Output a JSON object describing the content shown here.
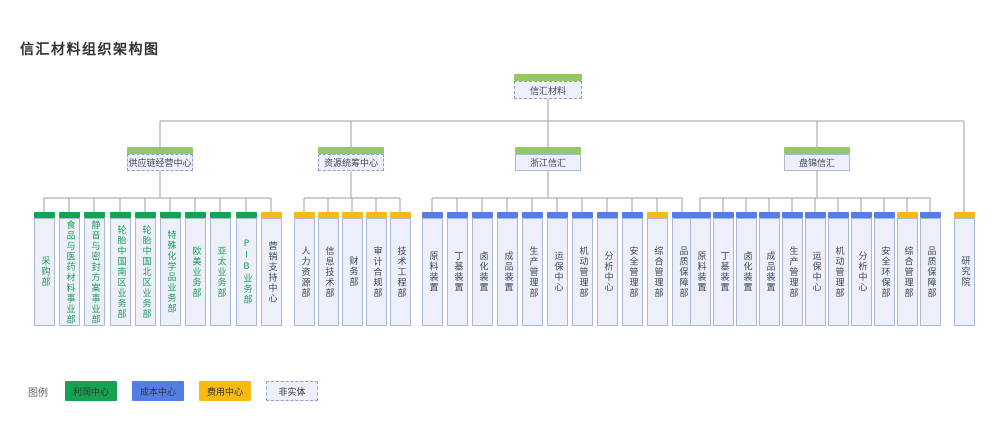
{
  "title": "信汇材料组织架构图",
  "colors": {
    "profit": "#16A351",
    "cost": "#537FE4",
    "expense": "#F8BA12",
    "light_green": "#93C95E",
    "profit_text": "#1e9b55",
    "line": "#9aa0a6",
    "node_fill": "#edf0fb"
  },
  "root": {
    "label": "信汇材料"
  },
  "level2": [
    {
      "label": "供应链经营中心",
      "style": "dashed",
      "children": [
        {
          "label": "采购部",
          "type": "profit"
        },
        {
          "label": "食品与医药材料事业部",
          "type": "profit"
        },
        {
          "label": "静音与密封方案事业部",
          "type": "profit"
        },
        {
          "label": "轮胎中国南区业务部",
          "type": "profit"
        },
        {
          "label": "轮胎中国北区业务部",
          "type": "profit"
        },
        {
          "label": "特殊化学品业务部",
          "type": "profit"
        },
        {
          "label": "欧美业务部",
          "type": "profit"
        },
        {
          "label": "亚太业务部",
          "type": "profit"
        },
        {
          "label": "PIB业务部",
          "type": "profit"
        },
        {
          "label": "营销支持中心",
          "type": "expense"
        }
      ]
    },
    {
      "label": "资源统筹中心",
      "style": "dashed",
      "children": [
        {
          "label": "人力资源部",
          "type": "expense"
        },
        {
          "label": "信息技术部",
          "type": "expense"
        },
        {
          "label": "财务部",
          "type": "expense"
        },
        {
          "label": "审计合规部",
          "type": "expense"
        },
        {
          "label": "技术工程部",
          "type": "expense"
        }
      ]
    },
    {
      "label": "浙江信汇",
      "style": "solid",
      "children": [
        {
          "label": "原料装置",
          "type": "cost"
        },
        {
          "label": "丁基装置",
          "type": "cost"
        },
        {
          "label": "卤化装置",
          "type": "cost"
        },
        {
          "label": "成品装置",
          "type": "cost"
        },
        {
          "label": "生产管理部",
          "type": "cost"
        },
        {
          "label": "运保中心",
          "type": "cost"
        },
        {
          "label": "机动管理部",
          "type": "cost"
        },
        {
          "label": "分析中心",
          "type": "cost"
        },
        {
          "label": "安全管理部",
          "type": "cost"
        },
        {
          "label": "综合管理部",
          "type": "expense"
        },
        {
          "label": "品质保障部",
          "type": "cost"
        }
      ]
    },
    {
      "label": "盘锦信汇",
      "style": "solid",
      "children": [
        {
          "label": "原料装置",
          "type": "cost"
        },
        {
          "label": "丁基装置",
          "type": "cost"
        },
        {
          "label": "卤化装置",
          "type": "cost"
        },
        {
          "label": "成品装置",
          "type": "cost"
        },
        {
          "label": "生产管理部",
          "type": "cost"
        },
        {
          "label": "运保中心",
          "type": "cost"
        },
        {
          "label": "机动管理部",
          "type": "cost"
        },
        {
          "label": "分析中心",
          "type": "cost"
        },
        {
          "label": "安全环保部",
          "type": "cost"
        },
        {
          "label": "综合管理部",
          "type": "expense"
        },
        {
          "label": "品质保障部",
          "type": "cost"
        }
      ]
    }
  ],
  "research": {
    "label": "研究院",
    "type": "expense"
  },
  "legend": {
    "label": "图例",
    "items": [
      {
        "label": "利润中心",
        "type": "profit"
      },
      {
        "label": "成本中心",
        "type": "cost"
      },
      {
        "label": "费用中心",
        "type": "expense"
      },
      {
        "label": "非实体",
        "type": "none"
      }
    ]
  }
}
